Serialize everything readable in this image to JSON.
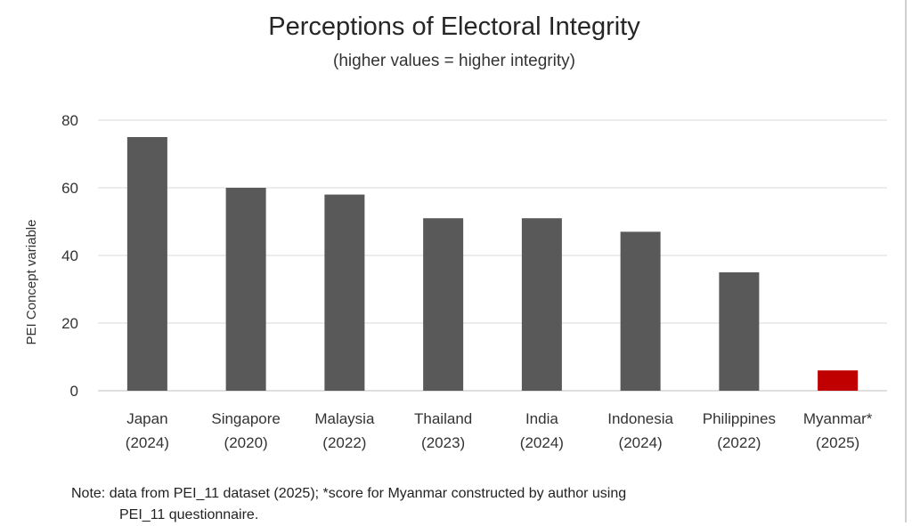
{
  "chart_data": {
    "type": "bar",
    "title": "Perceptions of Electoral Integrity",
    "subtitle": "(higher values = higher integrity)",
    "ylabel": "PEI Concept variable",
    "xlabel": "",
    "ylim": [
      0,
      80
    ],
    "yticks": [
      0,
      20,
      40,
      60,
      80
    ],
    "grid": true,
    "categories": [
      [
        "Japan",
        "(2024)"
      ],
      [
        "Singapore",
        "(2020)"
      ],
      [
        "Malaysia",
        "(2022)"
      ],
      [
        "Thailand",
        "(2023)"
      ],
      [
        "India",
        "(2024)"
      ],
      [
        "Indonesia",
        "(2024)"
      ],
      [
        "Philippines",
        "(2022)"
      ],
      [
        "Myanmar*",
        "(2025)"
      ]
    ],
    "values": [
      75,
      60,
      58,
      51,
      51,
      47,
      35,
      6
    ],
    "colors": [
      "#595959",
      "#595959",
      "#595959",
      "#595959",
      "#595959",
      "#595959",
      "#595959",
      "#c00000"
    ],
    "note_line1": "Note: data from PEI_11 dataset (2025); *score for Myanmar constructed by author using",
    "note_line2": "PEI_11 questionnaire."
  }
}
